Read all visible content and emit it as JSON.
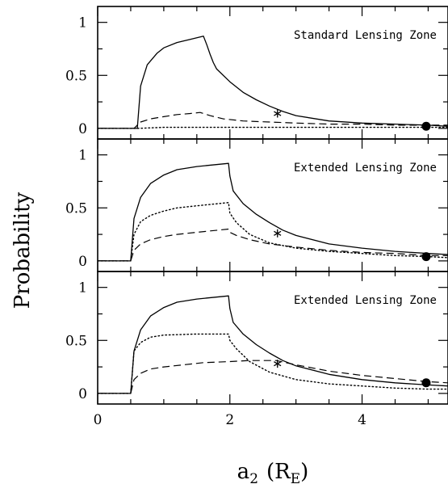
{
  "chart_data": {
    "type": "line",
    "xlabel": "a",
    "xlabel_sub": "2",
    "xlabel_unit_open": "(R",
    "xlabel_unit_sub": "E",
    "xlabel_unit_close": ")",
    "ylabel": "Probability",
    "xlim": [
      0,
      5.3
    ],
    "ylim": [
      -0.1,
      1.15
    ],
    "x_ticks": [
      0,
      2,
      4
    ],
    "x_tick_labels": [
      "0",
      "2",
      "4"
    ],
    "y_ticks": [
      0,
      0.5,
      1
    ],
    "y_tick_labels": [
      "0",
      "0.5",
      "1"
    ],
    "panels": [
      {
        "label": "Standard Lensing Zone",
        "series": [
          {
            "style": "solid",
            "x": [
              0,
              0.6,
              0.65,
              0.75,
              0.9,
              1.0,
              1.2,
              1.4,
              1.6,
              1.65,
              1.7,
              1.75,
              1.8,
              2.0,
              2.2,
              2.4,
              2.6,
              2.8,
              3.0,
              3.5,
              4.0,
              4.5,
              5.0,
              5.3
            ],
            "y": [
              0,
              0,
              0.4,
              0.6,
              0.71,
              0.76,
              0.81,
              0.84,
              0.87,
              0.79,
              0.7,
              0.62,
              0.56,
              0.44,
              0.34,
              0.27,
              0.21,
              0.16,
              0.12,
              0.07,
              0.05,
              0.04,
              0.03,
              0.02
            ]
          },
          {
            "style": "dashed",
            "x": [
              0,
              0.55,
              0.65,
              0.8,
              1.0,
              1.2,
              1.4,
              1.55,
              1.7,
              1.9,
              2.2,
              2.6,
              3.0,
              3.5,
              4.0,
              4.5,
              5.0,
              5.3
            ],
            "y": [
              0,
              0,
              0.06,
              0.09,
              0.11,
              0.13,
              0.14,
              0.15,
              0.12,
              0.09,
              0.07,
              0.06,
              0.05,
              0.04,
              0.04,
              0.03,
              0.03,
              0.03
            ]
          },
          {
            "style": "dotted",
            "x": [
              0,
              0.6,
              1.0,
              2.0,
              3.0,
              4.0,
              5.0,
              5.3
            ],
            "y": [
              0,
              0,
              0.01,
              0.01,
              0.01,
              0.01,
              0.01,
              0.01
            ]
          }
        ],
        "markers": [
          {
            "symbol": "asterisk",
            "x": 2.72,
            "y": 0.14
          },
          {
            "symbol": "filled-circle",
            "x": 4.97,
            "y": 0.02
          }
        ]
      },
      {
        "label": "Extended Lensing Zone",
        "series": [
          {
            "style": "solid",
            "x": [
              0,
              0.5,
              0.55,
              0.65,
              0.8,
              1.0,
              1.2,
              1.5,
              1.98,
              2.0,
              2.05,
              2.2,
              2.4,
              2.6,
              2.8,
              3.0,
              3.5,
              4.0,
              4.5,
              5.0,
              5.3
            ],
            "y": [
              0,
              0,
              0.4,
              0.6,
              0.73,
              0.81,
              0.86,
              0.89,
              0.92,
              0.8,
              0.66,
              0.54,
              0.44,
              0.36,
              0.29,
              0.24,
              0.16,
              0.12,
              0.09,
              0.07,
              0.06
            ]
          },
          {
            "style": "dotted",
            "x": [
              0,
              0.5,
              0.55,
              0.65,
              0.8,
              1.0,
              1.2,
              1.5,
              1.98,
              2.0,
              2.1,
              2.3,
              2.6,
              3.0,
              3.5,
              4.0,
              4.5,
              5.0,
              5.3
            ],
            "y": [
              0,
              0,
              0.25,
              0.37,
              0.43,
              0.47,
              0.5,
              0.52,
              0.55,
              0.45,
              0.36,
              0.25,
              0.17,
              0.12,
              0.09,
              0.07,
              0.05,
              0.04,
              0.03
            ]
          },
          {
            "style": "dashed",
            "x": [
              0,
              0.5,
              0.55,
              0.65,
              0.8,
              1.0,
              1.2,
              1.5,
              1.98,
              2.0,
              2.1,
              2.3,
              2.6,
              3.0,
              3.5,
              4.0,
              4.5,
              5.0,
              5.3
            ],
            "y": [
              0,
              0,
              0.1,
              0.16,
              0.2,
              0.23,
              0.25,
              0.27,
              0.3,
              0.27,
              0.24,
              0.2,
              0.16,
              0.13,
              0.1,
              0.08,
              0.07,
              0.05,
              0.05
            ]
          }
        ],
        "markers": [
          {
            "symbol": "asterisk",
            "x": 2.72,
            "y": 0.26
          },
          {
            "symbol": "filled-circle",
            "x": 4.97,
            "y": 0.04
          }
        ]
      },
      {
        "label": "Extended Lensing Zone",
        "series": [
          {
            "style": "solid",
            "x": [
              0,
              0.5,
              0.55,
              0.65,
              0.8,
              1.0,
              1.2,
              1.5,
              1.98,
              2.0,
              2.05,
              2.2,
              2.4,
              2.6,
              2.8,
              3.0,
              3.5,
              4.0,
              4.5,
              5.0,
              5.3
            ],
            "y": [
              0,
              0,
              0.4,
              0.6,
              0.73,
              0.81,
              0.86,
              0.89,
              0.92,
              0.8,
              0.67,
              0.56,
              0.46,
              0.38,
              0.31,
              0.26,
              0.18,
              0.13,
              0.1,
              0.08,
              0.07
            ]
          },
          {
            "style": "dotted",
            "x": [
              0,
              0.5,
              0.55,
              0.65,
              0.8,
              1.0,
              1.5,
              1.98,
              2.0,
              2.1,
              2.3,
              2.6,
              3.0,
              3.5,
              4.0,
              4.5,
              5.0,
              5.3
            ],
            "y": [
              0,
              0,
              0.4,
              0.48,
              0.53,
              0.55,
              0.56,
              0.56,
              0.5,
              0.42,
              0.3,
              0.2,
              0.13,
              0.09,
              0.07,
              0.05,
              0.04,
              0.04
            ]
          },
          {
            "style": "dashed",
            "x": [
              0,
              0.5,
              0.55,
              0.65,
              0.8,
              1.0,
              1.3,
              1.6,
              2.0,
              2.3,
              2.7,
              3.0,
              3.5,
              4.0,
              4.5,
              5.0,
              5.3
            ],
            "y": [
              0,
              0,
              0.13,
              0.19,
              0.23,
              0.25,
              0.27,
              0.29,
              0.3,
              0.31,
              0.31,
              0.27,
              0.21,
              0.17,
              0.14,
              0.11,
              0.1
            ]
          }
        ],
        "markers": [
          {
            "symbol": "asterisk",
            "x": 2.72,
            "y": 0.28
          },
          {
            "symbol": "filled-circle",
            "x": 4.97,
            "y": 0.1
          }
        ]
      }
    ]
  }
}
